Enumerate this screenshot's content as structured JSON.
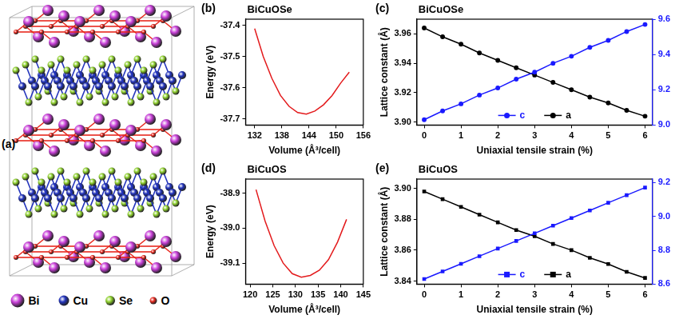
{
  "panel_a": {
    "label": "(a)",
    "atoms": [
      {
        "name": "Bi",
        "color": "#c83fd8"
      },
      {
        "name": "Cu",
        "color": "#2233bb"
      },
      {
        "name": "Se",
        "color": "#8fd12e"
      },
      {
        "name": "O",
        "color": "#e8281e"
      }
    ]
  },
  "chart_data": [
    {
      "panel": "(b)",
      "type": "line",
      "title": "BiCuOSe",
      "x_label": "Volume (Å³/cell)",
      "y_label": "Energy (eV)",
      "xlim": [
        130,
        156
      ],
      "xticks": [
        132,
        138,
        144,
        150,
        156
      ],
      "ylim": [
        -37.72,
        -37.38
      ],
      "yticks": [
        -37.7,
        -37.6,
        -37.5,
        -37.4
      ],
      "series": [
        {
          "color": "#e31a1c",
          "x": [
            132,
            133.9,
            135.8,
            137.7,
            139.6,
            141.5,
            143.4,
            145.3,
            147.2,
            149.1,
            151,
            152.9
          ],
          "values": [
            -37.41,
            -37.5,
            -37.57,
            -37.625,
            -37.66,
            -37.68,
            -37.685,
            -37.675,
            -37.655,
            -37.625,
            -37.585,
            -37.55
          ]
        }
      ]
    },
    {
      "panel": "(c)",
      "type": "line",
      "title": "BiCuOSe",
      "x_label": "Uniaxial tensile strain (%)",
      "y_label": "Lattice constant (Å)",
      "x": [
        0,
        0.5,
        1,
        1.5,
        2,
        2.5,
        3,
        3.5,
        4,
        4.5,
        5,
        5.5,
        6
      ],
      "xlim": [
        -0.2,
        6.2
      ],
      "xticks": [
        0,
        1,
        2,
        3,
        4,
        5,
        6
      ],
      "ylim": [
        3.898,
        3.97
      ],
      "yticks": [
        {
          "value": 3.9,
          "label": "3.90"
        },
        3.92,
        3.94,
        3.96
      ],
      "y2lim": [
        9.0,
        9.6
      ],
      "y2ticks": [
        {
          "value": 9,
          "label": "9.0"
        },
        9.2,
        9.4,
        9.6
      ],
      "legend": "bottom",
      "series": [
        {
          "name": "c",
          "axis": "y2",
          "color": "#1a1aff",
          "marker": "circle",
          "values": [
            9.03,
            9.08,
            9.12,
            9.17,
            9.21,
            9.26,
            9.3,
            9.35,
            9.39,
            9.44,
            9.48,
            9.53,
            9.57
          ]
        },
        {
          "name": "a",
          "color": "#000000",
          "marker": "circle",
          "values": [
            3.964,
            3.958,
            3.953,
            3.947,
            3.942,
            3.937,
            3.932,
            3.927,
            3.922,
            3.917,
            3.913,
            3.908,
            3.904
          ]
        }
      ]
    },
    {
      "panel": "(d)",
      "type": "line",
      "title": "BiCuOS",
      "x_label": "Volume (Å³/cell)",
      "y_label": "Energy (eV)",
      "xlim": [
        119,
        145
      ],
      "xticks": [
        120,
        125,
        130,
        135,
        140,
        145
      ],
      "ylim": [
        -39.16,
        -38.86
      ],
      "yticks": [
        -39.1,
        {
          "value": -39,
          "label": "-39.0"
        },
        -38.9
      ],
      "series": [
        {
          "color": "#e31a1c",
          "x": [
            121.3,
            123.3,
            125.3,
            127.3,
            129.3,
            131.3,
            133.3,
            135.3,
            137.3,
            139.3,
            141.3
          ],
          "values": [
            -38.89,
            -38.98,
            -39.05,
            -39.1,
            -39.13,
            -39.14,
            -39.135,
            -39.12,
            -39.09,
            -39.04,
            -38.975
          ]
        }
      ]
    },
    {
      "panel": "(e)",
      "type": "line",
      "title": "BiCuOS",
      "x_label": "Uniaxial tensile strain (%)",
      "y_label": "Lattice constant (Å)",
      "x": [
        0,
        0.5,
        1,
        1.5,
        2,
        2.5,
        3,
        3.5,
        4,
        4.5,
        5,
        5.5,
        6
      ],
      "xlim": [
        -0.2,
        6.2
      ],
      "xticks": [
        0,
        1,
        2,
        3,
        4,
        5,
        6
      ],
      "ylim": [
        3.838,
        3.906
      ],
      "yticks": [
        3.84,
        3.86,
        3.88,
        {
          "value": 3.9,
          "label": "3.90"
        }
      ],
      "y2lim": [
        8.6,
        9.22
      ],
      "y2ticks": [
        8.6,
        8.8,
        {
          "value": 9,
          "label": "9.0"
        },
        9.2
      ],
      "legend": "bottom",
      "series": [
        {
          "name": "c",
          "axis": "y2",
          "color": "#1a1aff",
          "marker": "square",
          "values": [
            8.63,
            8.675,
            8.72,
            8.765,
            8.81,
            8.855,
            8.9,
            8.945,
            8.99,
            9.035,
            9.08,
            9.125,
            9.17
          ]
        },
        {
          "name": "a",
          "color": "#000000",
          "marker": "square",
          "values": [
            3.898,
            3.893,
            3.888,
            3.883,
            3.878,
            3.873,
            3.869,
            3.864,
            3.86,
            3.855,
            3.851,
            3.846,
            3.842
          ]
        }
      ]
    }
  ]
}
